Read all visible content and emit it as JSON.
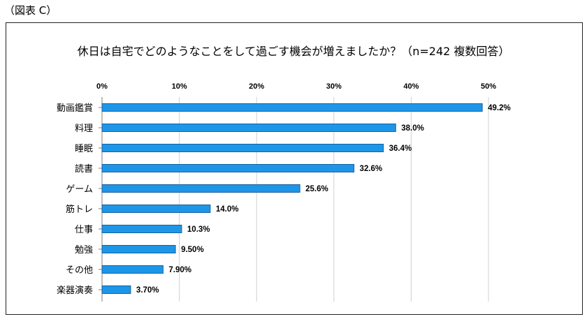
{
  "figure_label": "（図表 C）",
  "chart_data": {
    "type": "bar",
    "orientation": "horizontal",
    "title": "休日は自宅でどのようなことをして過ごす機会が増えましたか？（n=242 複数回答）",
    "categories": [
      "動画鑑賞",
      "料理",
      "睡眠",
      "読書",
      "ゲーム",
      "筋トレ",
      "仕事",
      "勉強",
      "その他",
      "楽器演奏"
    ],
    "values": [
      49.2,
      38.0,
      36.4,
      32.6,
      25.6,
      14.0,
      10.3,
      9.5,
      7.9,
      3.7
    ],
    "value_labels": [
      "49.2%",
      "38.0%",
      "36.4%",
      "32.6%",
      "25.6%",
      "14.0%",
      "10.3%",
      "9.50%",
      "7.90%",
      "3.70%"
    ],
    "xlim": [
      0,
      50
    ],
    "x_ticks": [
      0,
      10,
      20,
      30,
      40,
      50
    ],
    "x_tick_labels": [
      "0%",
      "10%",
      "20%",
      "30%",
      "40%",
      "50%"
    ],
    "x_axis_position": "top",
    "grid": true,
    "bar_color": "#1e96e8",
    "bar_edge_color": "#1a5fa0"
  }
}
